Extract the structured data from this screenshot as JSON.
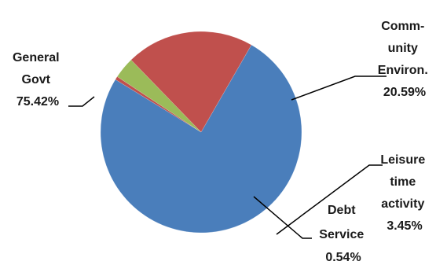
{
  "chart_data": {
    "type": "pie",
    "title": "",
    "slices": [
      {
        "label_lines": [
          "General",
          "Govt",
          "75.42%"
        ],
        "value": 75.42,
        "color": "#4a7ebb"
      },
      {
        "label_lines": [
          "Debt",
          "Service",
          "0.54%"
        ],
        "value": 0.54,
        "color": "#c0504d"
      },
      {
        "label_lines": [
          "Leisure",
          "time",
          "activity",
          "3.45%"
        ],
        "value": 3.45,
        "color": "#9bbb59"
      },
      {
        "label_lines": [
          "Comm-",
          "unity",
          "Environ.",
          "20.59%"
        ],
        "value": 20.59,
        "color": "#c0504d"
      }
    ],
    "legend": "none",
    "label_style": "outside-with-leader-lines"
  }
}
